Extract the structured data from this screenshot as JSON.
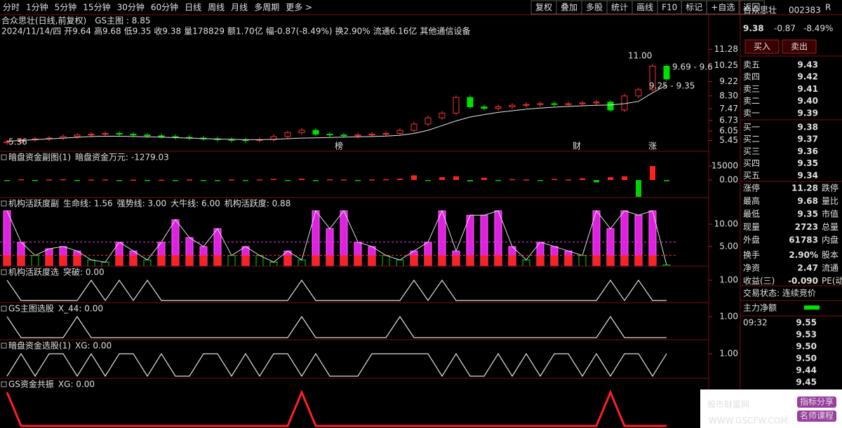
{
  "toolbar": {
    "periods": [
      "分时",
      "1分钟",
      "5分钟",
      "15分钟",
      "30分钟",
      "60分钟",
      "日线",
      "周线",
      "月线",
      "多周期",
      "更多 >"
    ],
    "selected": 6,
    "tools": [
      "复权",
      "叠加",
      "多股",
      "统计",
      "画线",
      "F10",
      "标记",
      "+自选",
      "返回"
    ]
  },
  "chart_data": [
    {
      "type": "candlestick",
      "title": "合众思壮(日线,前复权)",
      "indicator": "GS主图 : 8.85",
      "info": [
        {
          "text": "2024/11/14/四",
          "color": "#e0e0e0"
        },
        {
          "text": "开9.64",
          "color": "#ff4040"
        },
        {
          "text": "高9.68",
          "color": "#ff4040"
        },
        {
          "text": "低9.35",
          "color": "#00e000"
        },
        {
          "text": "收9.38",
          "color": "#00e000"
        },
        {
          "text": "量178829",
          "color": "#ffd700"
        },
        {
          "text": "额1.70亿",
          "color": "#e0e0e0"
        },
        {
          "text": "幅-0.87(-8.49%)",
          "color": "#00e000"
        },
        {
          "text": "换2.90%",
          "color": "#e0e0e0"
        },
        {
          "text": "流通6.16亿",
          "color": "#e0e0e0"
        },
        {
          "text": "其他通信设备",
          "color": "#ffd700"
        }
      ],
      "values": [
        5.36,
        5.5,
        5.55,
        5.6,
        5.7,
        5.8,
        5.85,
        5.9,
        5.85,
        5.8,
        5.75,
        5.7,
        5.65,
        5.6,
        5.55,
        5.5,
        5.48,
        5.45,
        5.5,
        5.7,
        5.95,
        6.1,
        5.85,
        5.8,
        5.75,
        5.8,
        5.85,
        5.9,
        6.1,
        6.5,
        6.9,
        7.2,
        8.2,
        7.6,
        7.5,
        7.6,
        7.7,
        7.75,
        7.8,
        7.75,
        7.8,
        7.85,
        7.9,
        7.4,
        8.3,
        8.7,
        10.2,
        9.38
      ],
      "ma": [
        5.4,
        5.45,
        5.5,
        5.55,
        5.6,
        5.65,
        5.7,
        5.72,
        5.72,
        5.7,
        5.68,
        5.66,
        5.63,
        5.6,
        5.57,
        5.54,
        5.52,
        5.5,
        5.5,
        5.52,
        5.56,
        5.6,
        5.62,
        5.64,
        5.66,
        5.68,
        5.7,
        5.73,
        5.78,
        5.9,
        6.1,
        6.4,
        6.7,
        6.95,
        7.1,
        7.25,
        7.35,
        7.45,
        7.52,
        7.58,
        7.63,
        7.67,
        7.7,
        7.72,
        7.8,
        7.95,
        8.5,
        9.0
      ],
      "ylim": [
        4.8,
        11.97
      ],
      "yticks": [
        {
          "value": 11.28,
          "label": "11.28"
        },
        {
          "value": 10.25,
          "label": "10.25"
        },
        {
          "value": 9.22,
          "label": "9.22"
        },
        {
          "value": 8.3,
          "label": "8.30"
        },
        {
          "value": 7.47,
          "label": "7.47"
        },
        {
          "value": 6.73,
          "label": "6.73"
        },
        {
          "value": 6.05,
          "label": "6.05"
        },
        {
          "value": 5.45,
          "label": "5.45"
        }
      ],
      "annotations": [
        "11.00",
        "9.69 - 9.6",
        "9.25 - 9.35",
        "5.36"
      ],
      "markers": [
        "榜",
        "财",
        "涨"
      ]
    },
    {
      "type": "bar",
      "title": "暗盘资金副图(1)",
      "fields": [
        {
          "label": "暗盘资金万元: -1279.03",
          "color": "#e0e0e0"
        }
      ],
      "values": [
        -500,
        800,
        -400,
        600,
        900,
        -300,
        500,
        700,
        -600,
        400,
        -200,
        300,
        -500,
        600,
        -400,
        -300,
        500,
        -600,
        700,
        1200,
        -800,
        1500,
        -1200,
        800,
        600,
        -500,
        700,
        900,
        1500,
        5000,
        -1000,
        3000,
        4000,
        -1500,
        2500,
        -800,
        1000,
        600,
        -700,
        1200,
        500,
        1800,
        -2500,
        3000,
        4000,
        -18000,
        15000,
        -1279
      ],
      "ylim": [
        -18000,
        30000
      ],
      "yticks": [
        15000,
        {
          "value": 0,
          "label": "0.00"
        }
      ]
    },
    {
      "type": "activity",
      "title": "机构活跃度副",
      "fields": [
        {
          "label": "生命线: 1.56",
          "color": "#e0e0e0"
        },
        {
          "label": "强势线: 3.00",
          "value": 3,
          "color": "#ff3030"
        },
        {
          "label": "大牛线: 6.00",
          "value": 6,
          "color": "#e040e0"
        },
        {
          "label": "机构活跃度: 0.88",
          "color": "#40e0ff"
        }
      ],
      "values": [
        13,
        6,
        3,
        4.5,
        5,
        4,
        2,
        1.5,
        6,
        4,
        2,
        6,
        11,
        7,
        5,
        9,
        3,
        5,
        3,
        1.5,
        4,
        2,
        13,
        9,
        13,
        6,
        5,
        3,
        2,
        4,
        6,
        13,
        4,
        12,
        12,
        13,
        5,
        2,
        6,
        5,
        4,
        3,
        13,
        9,
        13,
        12,
        13,
        0.88
      ],
      "ylim": [
        0.6,
        15.8
      ],
      "yticks": [
        {
          "value": 10,
          "label": "10.00"
        },
        {
          "value": 5,
          "label": "5.00"
        }
      ]
    },
    {
      "type": "line",
      "title": "机构活跃度选",
      "fields": [
        {
          "label": "突破: 0.00",
          "color": "#e0e0e0"
        }
      ],
      "color": "#e0e0e0",
      "values": [
        1,
        0,
        0,
        0,
        0,
        0,
        1,
        0,
        1,
        0,
        1,
        0,
        0,
        0,
        0,
        0,
        0,
        0,
        0,
        0,
        0,
        1,
        0,
        0,
        0,
        0,
        0,
        0,
        0,
        1,
        0,
        1,
        0,
        0,
        0,
        0,
        0,
        0,
        0,
        0,
        0,
        0,
        0,
        1,
        0,
        1,
        0,
        0
      ],
      "ylim": [
        0,
        1
      ],
      "yticks": [
        {
          "value": 1,
          "label": "1.00"
        }
      ]
    },
    {
      "type": "line",
      "title": "GS主图选股",
      "fields": [
        {
          "label": "X_44: 0.00",
          "color": "#e0e0e0"
        }
      ],
      "color": "#e0e0e0",
      "values": [
        1,
        0,
        0,
        0,
        0,
        1,
        0,
        0,
        0,
        0,
        0,
        0,
        0,
        0,
        0,
        0,
        0,
        0,
        0,
        0,
        0,
        1,
        0,
        0,
        0,
        0,
        0,
        0,
        1,
        0,
        0,
        0,
        0,
        0,
        0,
        0,
        0,
        0,
        0,
        0,
        0,
        0,
        0,
        1,
        0,
        0,
        0,
        0
      ],
      "ylim": [
        0,
        1
      ],
      "yticks": [
        {
          "value": 1,
          "label": "1.00"
        }
      ]
    },
    {
      "type": "line",
      "title": "暗盘资金选股(1)",
      "fields": [
        {
          "label": "XG: 0.00",
          "color": "#e0e0e0"
        }
      ],
      "color": "#e0e0e0",
      "values": [
        0,
        1,
        0,
        1,
        1,
        0,
        1,
        0,
        1,
        1,
        0,
        1,
        0,
        0,
        1,
        1,
        0,
        1,
        0,
        1,
        1,
        0,
        1,
        0,
        0,
        0,
        1,
        1,
        1,
        1,
        1,
        0,
        1,
        0,
        0,
        1,
        0,
        1,
        0,
        1,
        1,
        0,
        1,
        0,
        1,
        1,
        0,
        1
      ],
      "ylim": [
        0,
        1
      ],
      "yticks": [
        {
          "value": 1,
          "label": "1.00"
        }
      ]
    },
    {
      "type": "line",
      "title": "GS资金共振",
      "fields": [
        {
          "label": "XG: 0.00",
          "color": "#ff3030"
        }
      ],
      "color": "#ff2020",
      "values": [
        1,
        0,
        0,
        0,
        0,
        0,
        0,
        0,
        0,
        0,
        0,
        0,
        0,
        0,
        0,
        0,
        0,
        0,
        0,
        0,
        0,
        1,
        0,
        0,
        0,
        0,
        0,
        0,
        0,
        0,
        0,
        0,
        0,
        0,
        0,
        0,
        0,
        0,
        0,
        0,
        0,
        0,
        0,
        1,
        0,
        0,
        0,
        0
      ],
      "ylim": [
        0,
        1
      ],
      "yticks": []
    }
  ],
  "quote": {
    "name": "合众思壮",
    "code": "002383",
    "flag": "R",
    "price": "9.38",
    "change": "-0.87",
    "pct": "-8.49%",
    "buttons": [
      "买入",
      "卖出"
    ],
    "book": [
      {
        "label": "卖五",
        "price": "9.43"
      },
      {
        "label": "卖四",
        "price": "9.42"
      },
      {
        "label": "卖三",
        "price": "9.41"
      },
      {
        "label": "卖二",
        "price": "9.40"
      },
      {
        "label": "卖一",
        "price": "9.39"
      },
      {
        "label": "买一",
        "price": "9.38"
      },
      {
        "label": "买二",
        "price": "9.37"
      },
      {
        "label": "买三",
        "price": "9.36"
      },
      {
        "label": "买四",
        "price": "9.35"
      },
      {
        "label": "买五",
        "price": "9.34"
      }
    ],
    "stats": [
      {
        "label": "涨停",
        "value": "11.28",
        "next": "跌停",
        "color": "#ff4040"
      },
      {
        "label": "最高",
        "value": "9.68",
        "next": "量比",
        "color": "#00e000"
      },
      {
        "label": "最低",
        "value": "9.35",
        "next": "市值",
        "color": "#00e000"
      },
      {
        "label": "现量",
        "value": "2723",
        "next": "总量",
        "color": "#e040e0"
      },
      {
        "label": "外盘",
        "value": "61783",
        "next": "内盘",
        "color": "#ff4040"
      },
      {
        "label": "换手",
        "value": "2.90%",
        "next": "股本",
        "color": "#e0e0e0"
      },
      {
        "label": "净资",
        "value": "2.47",
        "next": "流通",
        "color": "#e0e0e0"
      },
      {
        "label": "收益(三)",
        "value": "-0.090",
        "next": "PE(动",
        "color": "#e0e0e0"
      }
    ],
    "status": "交易状态: 连续竞价",
    "main_net": "主力净额",
    "trades": [
      {
        "time": "09:32",
        "price": "9.55"
      },
      {
        "time": "",
        "price": "9.53"
      },
      {
        "time": "",
        "price": "9.50"
      },
      {
        "time": "",
        "price": "9.50"
      },
      {
        "time": "",
        "price": "9.44"
      },
      {
        "time": "",
        "price": "9.45"
      }
    ]
  },
  "watermark": {
    "site": "股市财富网",
    "url": "WWW.GSCFW.COM",
    "tags": [
      "指标分享",
      "名师课程"
    ]
  }
}
